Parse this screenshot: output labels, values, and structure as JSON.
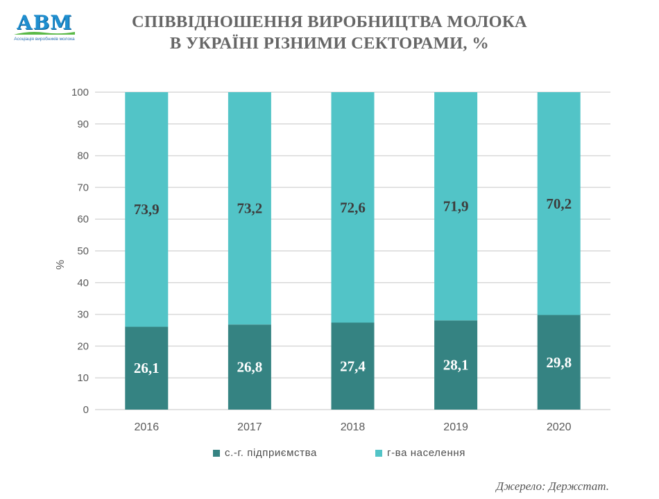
{
  "logo": {
    "text": "АВМ",
    "subtitle": "Асоціація виробників молока"
  },
  "title_line1": "СПІВВІДНОШЕННЯ ВИРОБНИЦТВА МОЛОКА",
  "title_line2": "В УКРАЇНІ РІЗНИМИ СЕКТОРАМИ, %",
  "source": "Джерело: Держстат.",
  "colors": {
    "enterprises": "#358382",
    "households": "#52c4c7",
    "grid": "#d9d9d9",
    "axis_text": "#595959"
  },
  "chart_data": {
    "type": "bar",
    "stacked": true,
    "categories": [
      "2016",
      "2017",
      "2018",
      "2019",
      "2020"
    ],
    "series": [
      {
        "name": "с.-г. підприємства",
        "values": [
          26.1,
          26.8,
          27.4,
          28.1,
          29.8
        ],
        "labels": [
          "26,1",
          "26,8",
          "27,4",
          "28,1",
          "29,8"
        ]
      },
      {
        "name": "г-ва населення",
        "values": [
          73.9,
          73.2,
          72.6,
          71.9,
          70.2
        ],
        "labels": [
          "73,9",
          "73,2",
          "72,6",
          "71,9",
          "70,2"
        ]
      }
    ],
    "ylabel": "%",
    "ylim": [
      0,
      100
    ],
    "yticks": [
      0,
      10,
      20,
      30,
      40,
      50,
      60,
      70,
      80,
      90,
      100
    ],
    "grid": true,
    "legend_position": "bottom"
  }
}
